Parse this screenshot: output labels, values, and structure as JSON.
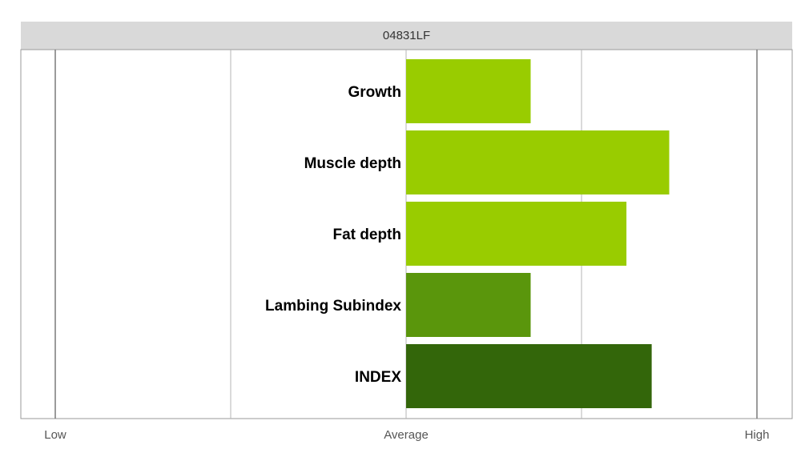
{
  "chart_data": {
    "type": "bar",
    "orientation": "horizontal",
    "title": "04831LF",
    "categories": [
      "Growth",
      "Muscle depth",
      "Fat depth",
      "Lambing Subindex",
      "INDEX"
    ],
    "values": [
      0.355,
      0.75,
      0.628,
      0.355,
      0.7
    ],
    "colors": [
      "#99cc00",
      "#99cc00",
      "#99cc00",
      "#5a960c",
      "#33660a"
    ],
    "x_axis": {
      "ticks": [
        {
          "value": -1,
          "label": "Low"
        },
        {
          "value": -0.5,
          "label": ""
        },
        {
          "value": 0,
          "label": "Average"
        },
        {
          "value": 0.5,
          "label": ""
        },
        {
          "value": 1,
          "label": "High"
        }
      ],
      "range": [
        -1,
        1
      ]
    },
    "grid": true,
    "legend": "none"
  }
}
